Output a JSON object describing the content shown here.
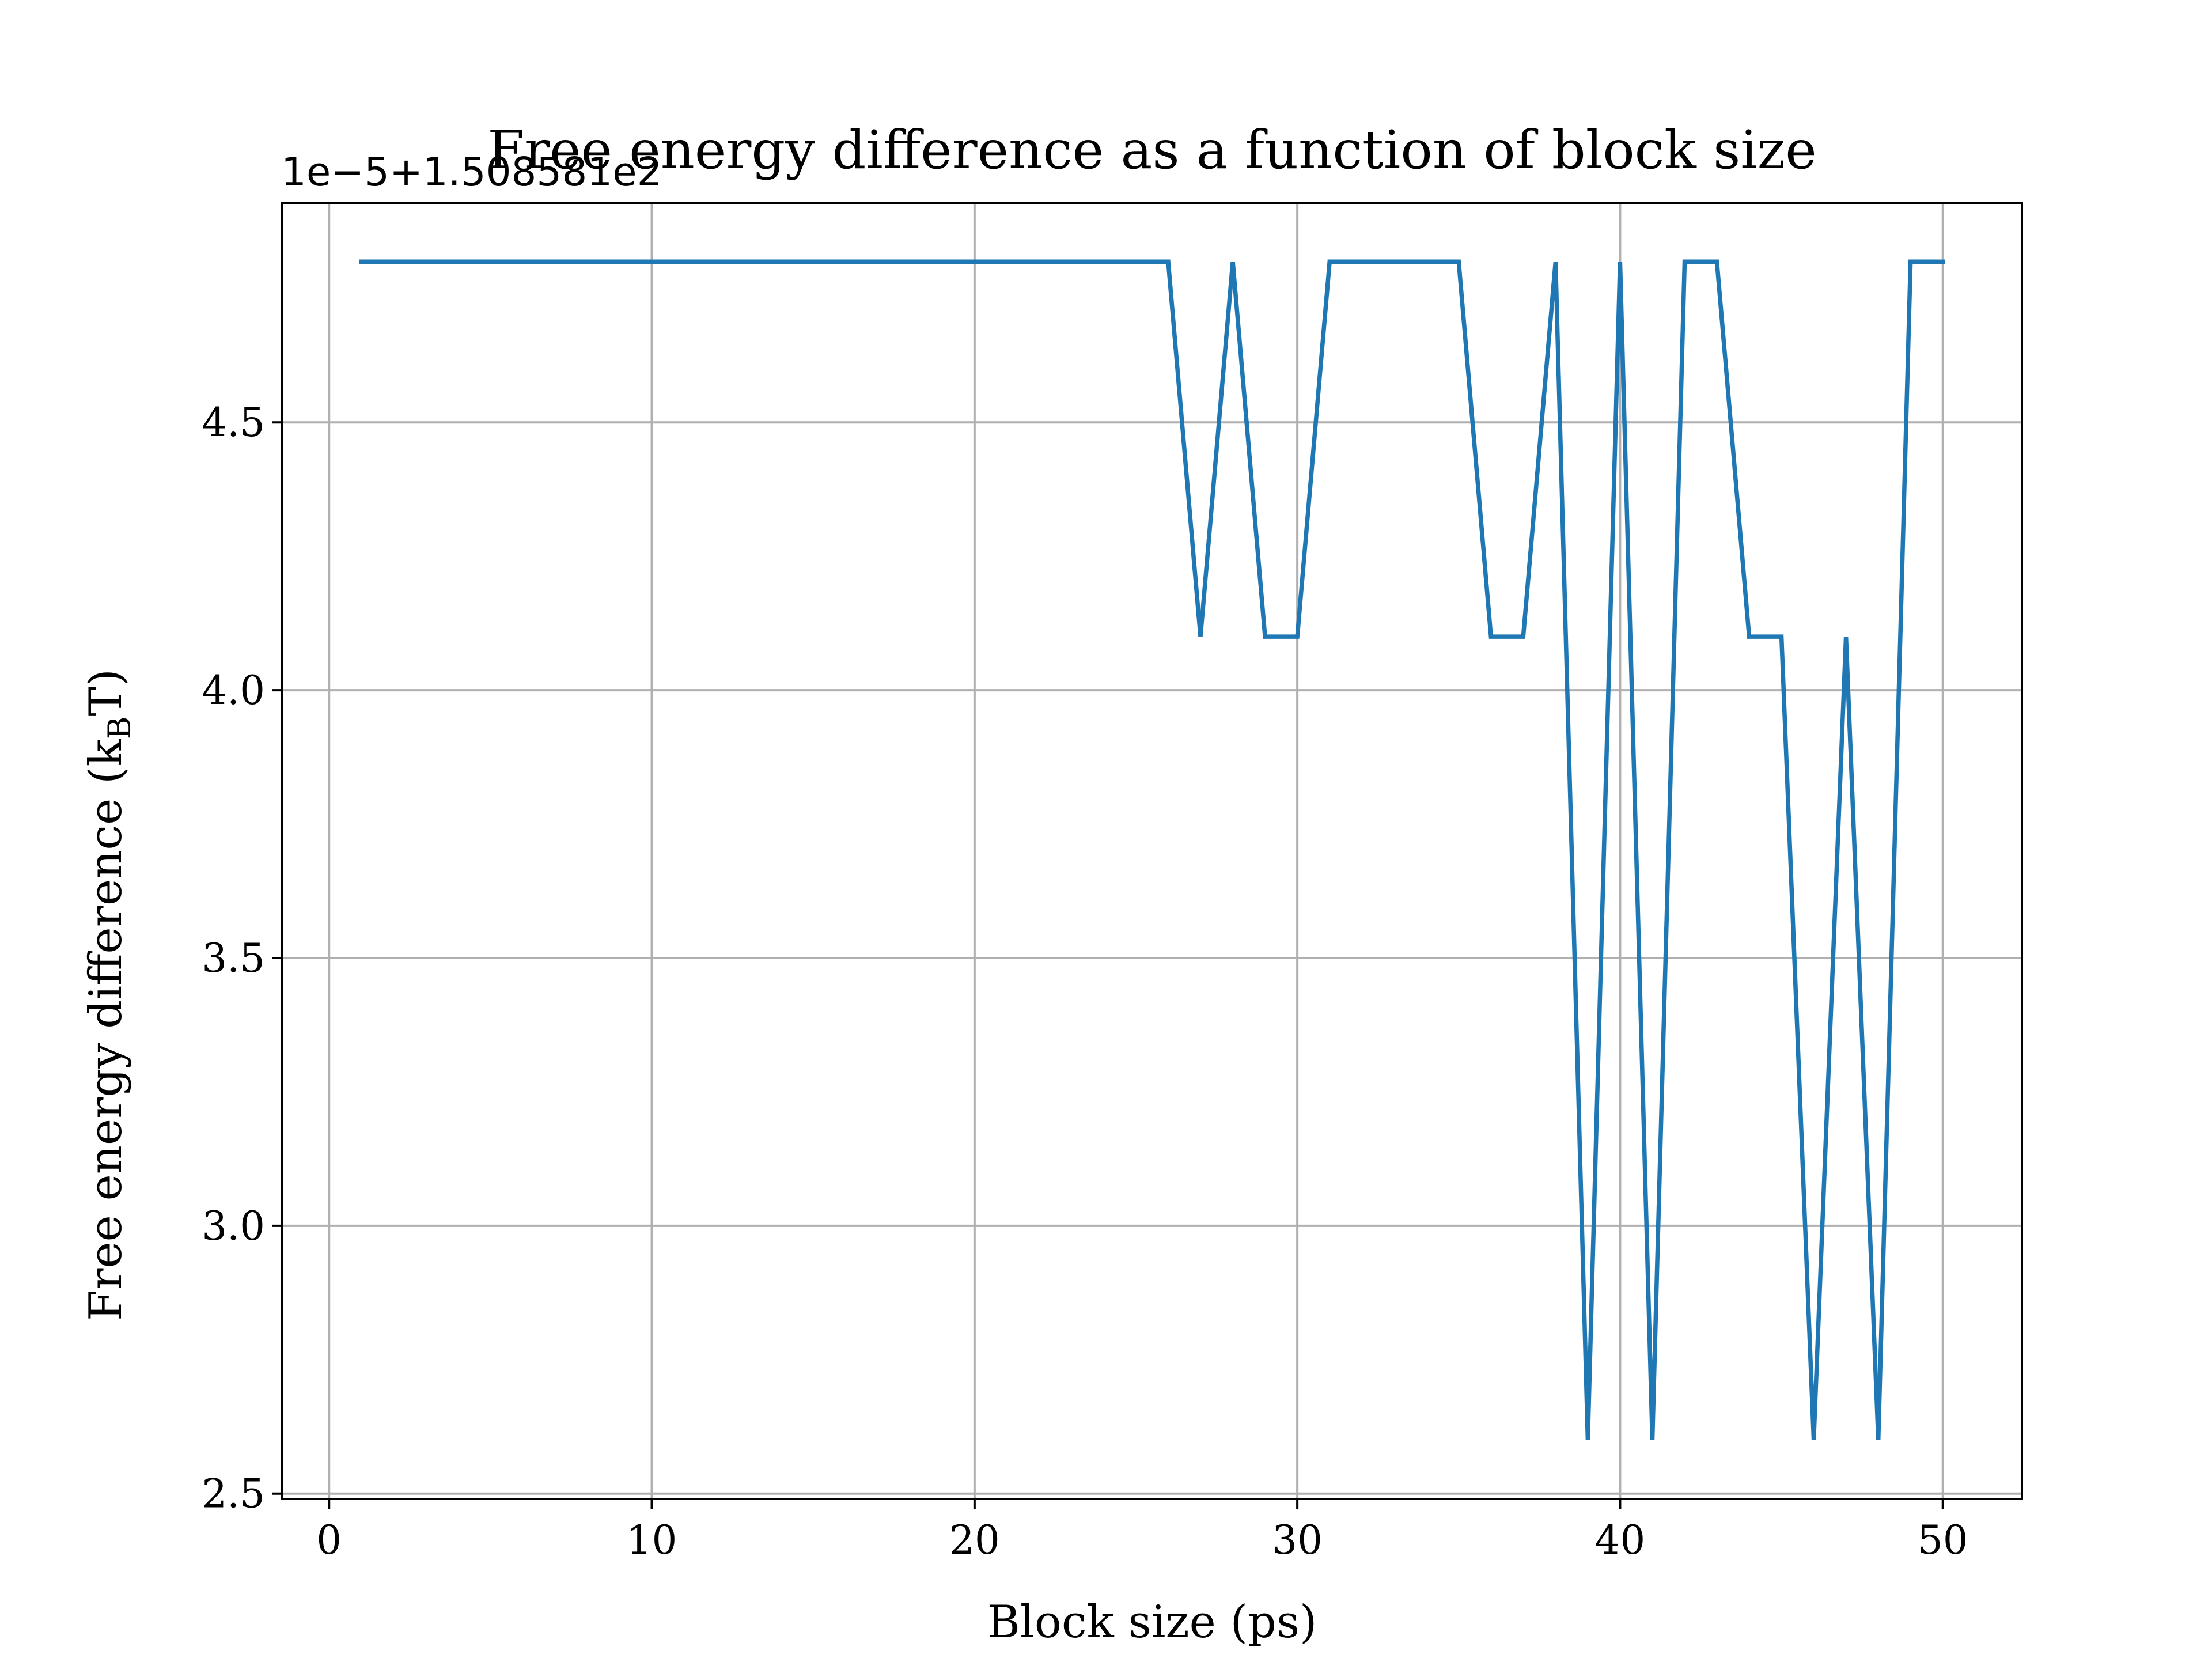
{
  "chart_data": {
    "type": "line",
    "title": "Free energy difference as a function of block size",
    "xlabel": "Block size (ps)",
    "ylabel": {
      "main": "Free energy difference (k",
      "subscript": "B",
      "suffix": "T)"
    },
    "y_offset_text": "1e−5+1.508581e2",
    "xlim": [
      -1.45,
      52.45
    ],
    "ylim": [
      2.49,
      4.91
    ],
    "x_ticks": [
      0,
      10,
      20,
      30,
      40,
      50
    ],
    "y_ticks": [
      2.5,
      3.0,
      3.5,
      4.0,
      4.5
    ],
    "x_tick_labels": [
      "0",
      "10",
      "20",
      "30",
      "40",
      "50"
    ],
    "y_tick_labels": [
      "2.5",
      "3.0",
      "3.5",
      "4.0",
      "4.5"
    ],
    "grid": true,
    "legend": false,
    "series": [
      {
        "color": "#1f77b4",
        "x": [
          1,
          2,
          3,
          4,
          5,
          6,
          7,
          8,
          9,
          10,
          11,
          12,
          13,
          14,
          15,
          16,
          17,
          18,
          19,
          20,
          21,
          22,
          23,
          24,
          25,
          26,
          27,
          28,
          29,
          30,
          31,
          32,
          33,
          34,
          35,
          36,
          37,
          38,
          39,
          40,
          41,
          42,
          43,
          44,
          45,
          46,
          47,
          48,
          49,
          50
        ],
        "y": [
          4.8,
          4.8,
          4.8,
          4.8,
          4.8,
          4.8,
          4.8,
          4.8,
          4.8,
          4.8,
          4.8,
          4.8,
          4.8,
          4.8,
          4.8,
          4.8,
          4.8,
          4.8,
          4.8,
          4.8,
          4.8,
          4.8,
          4.8,
          4.8,
          4.8,
          4.8,
          4.1,
          4.8,
          4.1,
          4.1,
          4.8,
          4.8,
          4.8,
          4.8,
          4.8,
          4.1,
          4.1,
          4.8,
          2.6,
          4.8,
          2.6,
          4.8,
          4.8,
          4.1,
          4.1,
          2.6,
          4.1,
          2.6,
          4.8,
          4.8
        ]
      }
    ]
  }
}
